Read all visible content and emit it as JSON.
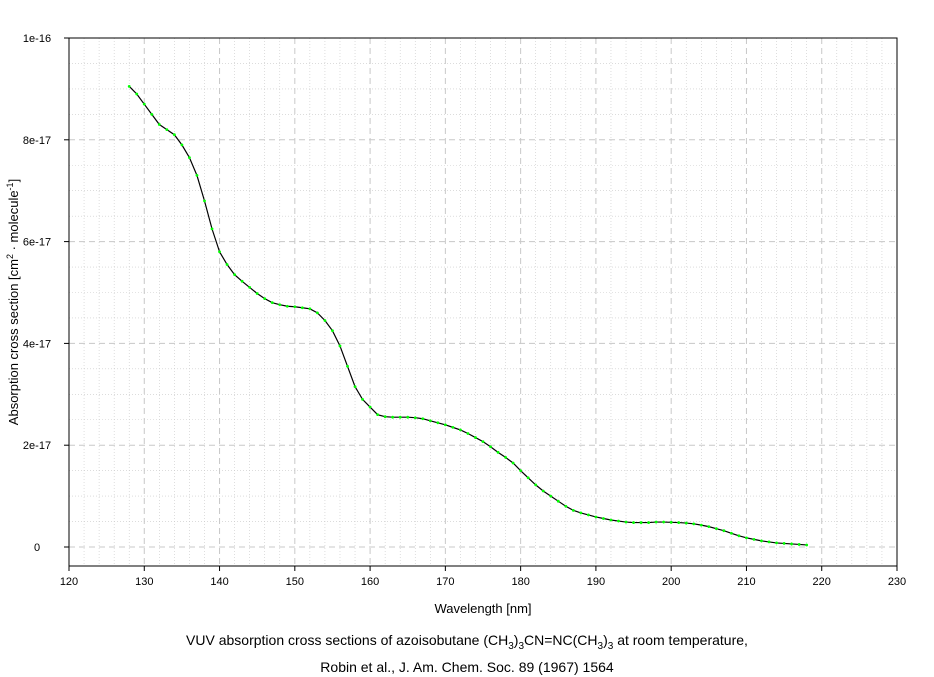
{
  "chart_data": {
    "type": "line",
    "xlabel": "Wavelength [nm]",
    "ylabel_parts": {
      "pre": "Absorption cross section [cm",
      "sup1": "2",
      "mid": " · molecule",
      "sup2": "-1",
      "post": "]"
    },
    "xlim": [
      120,
      230
    ],
    "ylim": [
      0,
      1e-16
    ],
    "x_ticks": [
      120,
      130,
      140,
      150,
      160,
      170,
      180,
      190,
      200,
      210,
      220,
      230
    ],
    "x_tick_labels": [
      "120",
      "130",
      "140",
      "150",
      "160",
      "170",
      "180",
      "190",
      "200",
      "210",
      "220",
      "230"
    ],
    "y_ticks": [
      0,
      2e-17,
      4e-17,
      6e-17,
      8e-17,
      1e-16
    ],
    "y_tick_labels": [
      "0",
      "2e-17",
      "4e-17",
      "6e-17",
      "8e-17",
      "1e-16"
    ],
    "grid": true,
    "colors": {
      "line": "#000000",
      "markers": "#00ff00",
      "grid": "#c8c8c8"
    },
    "series": [
      {
        "x": [
          128,
          129,
          130,
          131,
          132,
          133,
          134,
          135,
          136,
          137,
          138,
          139,
          140,
          141,
          142,
          143,
          144,
          145,
          146,
          147,
          148,
          149,
          150,
          151,
          152,
          153,
          154,
          155,
          156,
          157,
          158,
          159,
          160,
          161,
          162,
          163,
          164,
          165,
          166,
          167,
          168,
          169,
          170,
          171,
          172,
          173,
          174,
          175,
          176,
          177,
          178,
          179,
          180,
          181,
          182,
          183,
          184,
          185,
          186,
          187,
          188,
          189,
          190,
          191,
          192,
          193,
          194,
          195,
          196,
          197,
          198,
          199,
          200,
          201,
          202,
          203,
          204,
          205,
          206,
          207,
          208,
          209,
          210,
          211,
          212,
          213,
          214,
          215,
          216,
          217,
          218
        ],
        "y": [
          9.05e-17,
          8.9e-17,
          8.7e-17,
          8.5e-17,
          8.3e-17,
          8.2e-17,
          8.1e-17,
          7.9e-17,
          7.65e-17,
          7.3e-17,
          6.8e-17,
          6.25e-17,
          5.8e-17,
          5.55e-17,
          5.35e-17,
          5.22e-17,
          5.1e-17,
          4.98e-17,
          4.88e-17,
          4.8e-17,
          4.76e-17,
          4.73e-17,
          4.72e-17,
          4.7e-17,
          4.68e-17,
          4.6e-17,
          4.45e-17,
          4.25e-17,
          3.95e-17,
          3.55e-17,
          3.15e-17,
          2.9e-17,
          2.75e-17,
          2.6e-17,
          2.56e-17,
          2.55e-17,
          2.55e-17,
          2.55e-17,
          2.54e-17,
          2.52e-17,
          2.48e-17,
          2.44e-17,
          2.4e-17,
          2.35e-17,
          2.3e-17,
          2.23e-17,
          2.15e-17,
          2.07e-17,
          1.97e-17,
          1.86e-17,
          1.76e-17,
          1.65e-17,
          1.5e-17,
          1.36e-17,
          1.22e-17,
          1.1e-17,
          1e-17,
          9e-18,
          8e-18,
          7.2e-18,
          6.7e-18,
          6.3e-18,
          5.9e-18,
          5.6e-18,
          5.3e-18,
          5.1e-18,
          4.9e-18,
          4.8e-18,
          4.8e-18,
          4.8e-18,
          4.9e-18,
          4.9e-18,
          4.85e-18,
          4.8e-18,
          4.7e-18,
          4.55e-18,
          4.3e-18,
          4e-18,
          3.6e-18,
          3.2e-18,
          2.7e-18,
          2.2e-18,
          1.8e-18,
          1.5e-18,
          1.2e-18,
          1e-18,
          8e-19,
          7e-19,
          6e-19,
          5e-19,
          4e-19
        ]
      }
    ]
  },
  "caption": {
    "line1_parts": [
      "VUV absorption cross sections of azoisobutane (CH",
      "3",
      ")",
      "3",
      "CN=NC(CH",
      "3",
      ")",
      "3",
      " at room temperature,"
    ],
    "line2": "Robin et al., J. Am. Chem. Soc. 89 (1967) 1564"
  }
}
